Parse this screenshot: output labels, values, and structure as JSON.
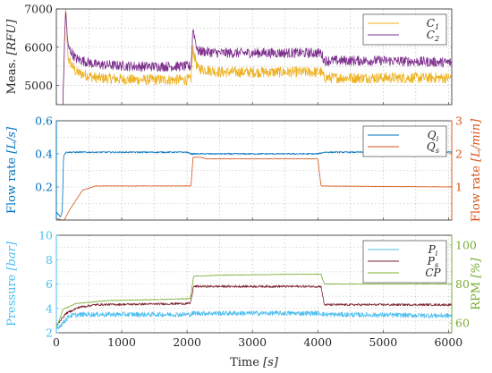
{
  "chart_data": [
    {
      "type": "line",
      "ylabel": "Meas. [RFU]",
      "ylim": [
        4500,
        7000
      ],
      "yticks": [
        5000,
        6000,
        7000
      ],
      "xlim": [
        0,
        6050
      ],
      "xticks": [
        0,
        1000,
        2000,
        3000,
        4000,
        5000,
        6000
      ],
      "grid": true,
      "legend_position": "top-right",
      "series": [
        {
          "name": "C1",
          "legend_main": "C",
          "legend_sub": "1",
          "color": "#EDB120",
          "noise": 140,
          "points": [
            [
              100,
              4500
            ],
            [
              140,
              7000
            ],
            [
              180,
              5700
            ],
            [
              300,
              5350
            ],
            [
              600,
              5200
            ],
            [
              1200,
              5150
            ],
            [
              1800,
              5150
            ],
            [
              2060,
              5150
            ],
            [
              2090,
              5950
            ],
            [
              2160,
              5450
            ],
            [
              2500,
              5350
            ],
            [
              3500,
              5350
            ],
            [
              4050,
              5350
            ],
            [
              4100,
              5200
            ],
            [
              5000,
              5200
            ],
            [
              6050,
              5200
            ]
          ]
        },
        {
          "name": "C2",
          "legend_main": "C",
          "legend_sub": "2",
          "color": "#7E2F8E",
          "noise": 130,
          "points": [
            [
              100,
              4500
            ],
            [
              140,
              7000
            ],
            [
              180,
              6000
            ],
            [
              300,
              5700
            ],
            [
              600,
              5550
            ],
            [
              1200,
              5500
            ],
            [
              1800,
              5500
            ],
            [
              2060,
              5500
            ],
            [
              2090,
              6500
            ],
            [
              2160,
              5900
            ],
            [
              2500,
              5850
            ],
            [
              3500,
              5850
            ],
            [
              4050,
              5850
            ],
            [
              4100,
              5650
            ],
            [
              5000,
              5650
            ],
            [
              6050,
              5600
            ]
          ]
        }
      ]
    },
    {
      "type": "line",
      "ylabel": "Flow rate [L/s]",
      "ylim": [
        0,
        0.6
      ],
      "yticks": [
        0.2,
        0.4,
        0.6
      ],
      "ylabel_right": "Flow rate [L/min]",
      "ylim_right": [
        0,
        3
      ],
      "yticks_right": [
        1,
        2,
        3
      ],
      "xlim": [
        0,
        6050
      ],
      "xticks": [
        0,
        1000,
        2000,
        3000,
        4000,
        5000,
        6000
      ],
      "grid": true,
      "legend_position": "top-right",
      "series": [
        {
          "name": "Qi",
          "legend_main": "Q",
          "legend_sub": "i",
          "axis": "left",
          "color": "#0072BD",
          "noise": 0.004,
          "points": [
            [
              0,
              0.05
            ],
            [
              60,
              0.02
            ],
            [
              90,
              0.05
            ],
            [
              110,
              0.39
            ],
            [
              150,
              0.41
            ],
            [
              2000,
              0.41
            ],
            [
              2060,
              0.4
            ],
            [
              3500,
              0.4
            ],
            [
              4000,
              0.4
            ],
            [
              4100,
              0.41
            ],
            [
              6050,
              0.41
            ]
          ]
        },
        {
          "name": "Qs",
          "legend_main": "Q",
          "legend_sub": "s",
          "axis": "right",
          "color": "#D95319",
          "noise": 0.006,
          "points": [
            [
              0,
              0.05
            ],
            [
              80,
              0.0
            ],
            [
              120,
              0.0
            ],
            [
              200,
              0.3
            ],
            [
              400,
              0.9
            ],
            [
              600,
              1.03
            ],
            [
              2060,
              1.03
            ],
            [
              2090,
              1.9
            ],
            [
              2200,
              1.9
            ],
            [
              2300,
              1.85
            ],
            [
              3500,
              1.85
            ],
            [
              4000,
              1.85
            ],
            [
              4050,
              1.03
            ],
            [
              6050,
              1.0
            ]
          ]
        }
      ]
    },
    {
      "type": "line",
      "ylabel": "Pressure [bar]",
      "ylim": [
        2,
        10
      ],
      "yticks": [
        2,
        4,
        6,
        8,
        10
      ],
      "ylabel_right": "RPM [%]",
      "ylim_right": [
        55,
        105
      ],
      "yticks_right": [
        60,
        80,
        100
      ],
      "xlabel": "Time [s]",
      "xlim": [
        0,
        6050
      ],
      "xticks": [
        0,
        1000,
        2000,
        3000,
        4000,
        5000,
        6000
      ],
      "grid": true,
      "legend_position": "top-right",
      "series": [
        {
          "name": "Pi",
          "legend_main": "P",
          "legend_sub": "i",
          "axis": "left",
          "color": "#4DBEEE",
          "noise": 0.2,
          "points": [
            [
              0,
              2.3
            ],
            [
              100,
              2.8
            ],
            [
              200,
              3.4
            ],
            [
              400,
              3.5
            ],
            [
              2050,
              3.5
            ],
            [
              2100,
              3.6
            ],
            [
              4050,
              3.6
            ],
            [
              4100,
              3.5
            ],
            [
              6050,
              3.4
            ]
          ]
        },
        {
          "name": "Ps",
          "legend_main": "P",
          "legend_sub": "s",
          "axis": "left",
          "color": "#7A1F2A",
          "noise": 0.09,
          "points": [
            [
              0,
              2.6
            ],
            [
              150,
              3.6
            ],
            [
              350,
              4.1
            ],
            [
              600,
              4.3
            ],
            [
              2050,
              4.4
            ],
            [
              2100,
              5.8
            ],
            [
              3000,
              5.8
            ],
            [
              4050,
              5.8
            ],
            [
              4100,
              4.3
            ],
            [
              6050,
              4.3
            ]
          ]
        },
        {
          "name": "CP",
          "legend_main": "CP",
          "legend_sub": "",
          "axis": "right",
          "color": "#77AC30",
          "noise": 0.15,
          "points": [
            [
              0,
              57
            ],
            [
              100,
              67
            ],
            [
              300,
              70
            ],
            [
              800,
              71.5
            ],
            [
              1500,
              72
            ],
            [
              2050,
              72.5
            ],
            [
              2100,
              84
            ],
            [
              2500,
              84.5
            ],
            [
              3500,
              85
            ],
            [
              4050,
              85
            ],
            [
              4100,
              80
            ],
            [
              5000,
              80
            ],
            [
              6050,
              80
            ]
          ]
        }
      ]
    }
  ]
}
